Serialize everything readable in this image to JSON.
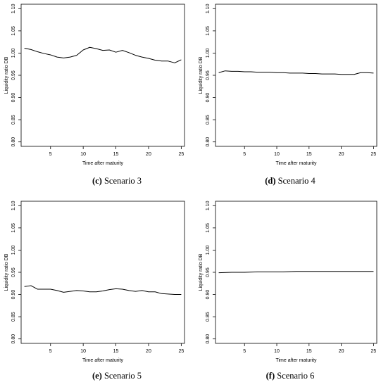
{
  "chart_data": [
    {
      "type": "line",
      "caption_letter": "(c)",
      "caption_text": "Scenario 3",
      "xlabel": "Time after maturity",
      "ylabel": "Liquidity ratio DB",
      "xlim": [
        0.5,
        25.5
      ],
      "ylim": [
        0.79,
        1.11
      ],
      "xticks": [
        5,
        10,
        15,
        20,
        25
      ],
      "yticks": [
        0.8,
        0.85,
        0.9,
        0.95,
        1.0,
        1.05,
        1.1
      ],
      "ytick_labels": [
        "0.80",
        "0.85",
        "0.90",
        "0.95",
        "1.00",
        "1.05",
        "1.10"
      ],
      "grid": false,
      "series": [
        {
          "color": "#000000",
          "x": [
            1,
            2,
            3,
            4,
            5,
            6,
            7,
            8,
            9,
            10,
            11,
            12,
            13,
            14,
            15,
            16,
            17,
            18,
            19,
            20,
            21,
            22,
            23,
            24,
            25
          ],
          "y": [
            1.011,
            1.008,
            1.003,
            0.999,
            0.996,
            0.991,
            0.989,
            0.991,
            0.995,
            1.007,
            1.013,
            1.01,
            1.006,
            1.007,
            1.002,
            1.006,
            1.001,
            0.995,
            0.991,
            0.988,
            0.984,
            0.982,
            0.982,
            0.978,
            0.985
          ]
        }
      ]
    },
    {
      "type": "line",
      "caption_letter": "(d)",
      "caption_text": "Scenario 4",
      "xlabel": "Time after maturity",
      "ylabel": "Liquidity ratio DB",
      "xlim": [
        0.5,
        25.5
      ],
      "ylim": [
        0.79,
        1.11
      ],
      "xticks": [
        5,
        10,
        15,
        20,
        25
      ],
      "yticks": [
        0.8,
        0.85,
        0.9,
        0.95,
        1.0,
        1.05,
        1.1
      ],
      "ytick_labels": [
        "0.80",
        "0.85",
        "0.90",
        "0.95",
        "1.00",
        "1.05",
        "1.10"
      ],
      "grid": false,
      "series": [
        {
          "color": "#000000",
          "x": [
            1,
            2,
            3,
            4,
            5,
            6,
            7,
            8,
            9,
            10,
            11,
            12,
            13,
            14,
            15,
            16,
            17,
            18,
            19,
            20,
            21,
            22,
            23,
            24,
            25
          ],
          "y": [
            0.956,
            0.96,
            0.959,
            0.959,
            0.958,
            0.958,
            0.957,
            0.957,
            0.957,
            0.956,
            0.956,
            0.955,
            0.955,
            0.955,
            0.954,
            0.954,
            0.953,
            0.953,
            0.953,
            0.952,
            0.952,
            0.952,
            0.956,
            0.956,
            0.955
          ]
        }
      ]
    },
    {
      "type": "line",
      "caption_letter": "(e)",
      "caption_text": "Scenario 5",
      "xlabel": "Time after maturity",
      "ylabel": "Liquidity ratio DB",
      "xlim": [
        0.5,
        25.5
      ],
      "ylim": [
        0.79,
        1.11
      ],
      "xticks": [
        5,
        10,
        15,
        20,
        25
      ],
      "yticks": [
        0.8,
        0.85,
        0.9,
        0.95,
        1.0,
        1.05,
        1.1
      ],
      "ytick_labels": [
        "0.80",
        "0.85",
        "0.90",
        "0.95",
        "1.00",
        "1.05",
        "1.10"
      ],
      "grid": false,
      "series": [
        {
          "color": "#000000",
          "x": [
            1,
            2,
            3,
            4,
            5,
            6,
            7,
            8,
            9,
            10,
            11,
            12,
            13,
            14,
            15,
            16,
            17,
            18,
            19,
            20,
            21,
            22,
            23,
            24,
            25
          ],
          "y": [
            0.918,
            0.92,
            0.912,
            0.912,
            0.912,
            0.909,
            0.905,
            0.907,
            0.909,
            0.908,
            0.906,
            0.906,
            0.908,
            0.911,
            0.913,
            0.912,
            0.909,
            0.907,
            0.909,
            0.906,
            0.906,
            0.902,
            0.901,
            0.9,
            0.9
          ]
        }
      ]
    },
    {
      "type": "line",
      "caption_letter": "(f)",
      "caption_text": "Scenario 6",
      "xlabel": "Time after maturity",
      "ylabel": "Liquidity ratio DB",
      "xlim": [
        0.5,
        25.5
      ],
      "ylim": [
        0.79,
        1.11
      ],
      "xticks": [
        5,
        10,
        15,
        20,
        25
      ],
      "yticks": [
        0.8,
        0.85,
        0.9,
        0.95,
        1.0,
        1.05,
        1.1
      ],
      "ytick_labels": [
        "0.80",
        "0.85",
        "0.90",
        "0.95",
        "1.00",
        "1.05",
        "1.10"
      ],
      "grid": false,
      "series": [
        {
          "color": "#000000",
          "x": [
            1,
            3,
            5,
            7,
            9,
            11,
            13,
            15,
            17,
            19,
            21,
            23,
            25
          ],
          "y": [
            0.949,
            0.95,
            0.95,
            0.951,
            0.951,
            0.951,
            0.952,
            0.952,
            0.952,
            0.952,
            0.952,
            0.952,
            0.952
          ]
        }
      ]
    }
  ]
}
